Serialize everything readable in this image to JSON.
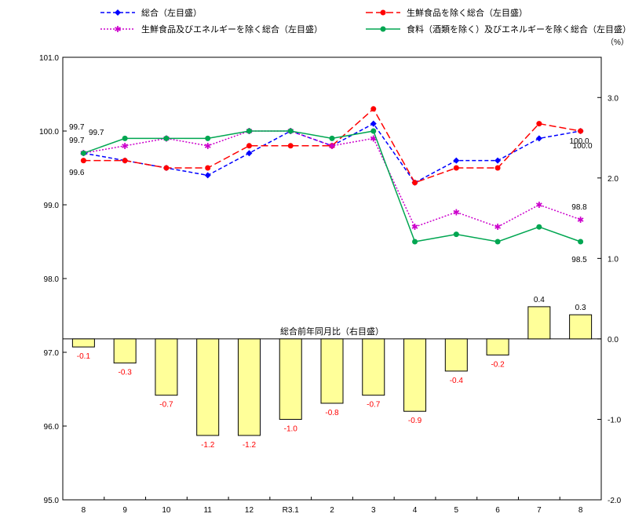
{
  "chart_data": {
    "type": "line+bar",
    "categories": [
      "8",
      "9",
      "10",
      "11",
      "12",
      "R3.1",
      "2",
      "3",
      "4",
      "5",
      "6",
      "7",
      "8"
    ],
    "left_axis": {
      "min": 95.0,
      "max": 101.0,
      "step": 1.0,
      "ticks": [
        "95.0",
        "96.0",
        "97.0",
        "98.0",
        "99.0",
        "100.0",
        "101.0"
      ]
    },
    "right_axis": {
      "min": -2.0,
      "max": 3.5,
      "step": 1.0,
      "unit_label": "（%）",
      "ticks": [
        "-2.0",
        "-1.0",
        "0.0",
        "1.0",
        "2.0",
        "3.0"
      ]
    },
    "line_series": [
      {
        "name": "総合（左目盛）",
        "color": "#0000ff",
        "dash": "5,3",
        "marker": "diamond",
        "values": [
          99.7,
          99.6,
          99.5,
          99.4,
          99.7,
          100.0,
          99.8,
          100.1,
          99.3,
          99.6,
          99.6,
          99.9,
          100.0
        ]
      },
      {
        "name": "生鮮食品を除く総合（左目盛）",
        "color": "#ff0000",
        "dash": "9,4",
        "marker": "circle",
        "values": [
          99.6,
          99.6,
          99.5,
          99.5,
          99.8,
          99.8,
          99.8,
          100.3,
          99.3,
          99.5,
          99.5,
          100.1,
          100.0
        ]
      },
      {
        "name": "生鮮食品及びエネルギーを除く総合（左目盛）",
        "color": "#cc00cc",
        "dash": "2,2",
        "marker": "star",
        "values": [
          99.7,
          99.8,
          99.9,
          99.8,
          100.0,
          100.0,
          99.8,
          99.9,
          98.7,
          98.9,
          98.7,
          99.0,
          98.8
        ]
      },
      {
        "name": "食料（酒類を除く）及びエネルギーを除く総合（左目盛）",
        "color": "#00a651",
        "dash": "",
        "marker": "circle",
        "values": [
          99.7,
          99.9,
          99.9,
          99.9,
          100.0,
          100.0,
          99.9,
          100.0,
          98.5,
          98.6,
          98.5,
          98.7,
          98.5
        ]
      }
    ],
    "bar_series": {
      "name": "総合前年同月比（右目盛）",
      "fill": "#ffff99",
      "stroke": "#000000",
      "label_color_negative": "#ff0000",
      "values": [
        -0.1,
        -0.3,
        -0.7,
        -1.2,
        -1.2,
        -1.0,
        -0.8,
        -0.7,
        -0.9,
        -0.4,
        -0.2,
        0.4,
        0.3
      ],
      "labels": [
        "-0.1",
        "-0.3",
        "-0.7",
        "-1.2",
        "-1.2",
        "-1.0",
        "-0.8",
        "-0.7",
        "-0.9",
        "-0.4",
        "-0.2",
        "0.4",
        "0.3"
      ]
    },
    "annotations": [
      "99.7",
      "99.7",
      "99.7",
      "99.6",
      "100.0",
      "100.0",
      "98.8",
      "98.5"
    ]
  }
}
